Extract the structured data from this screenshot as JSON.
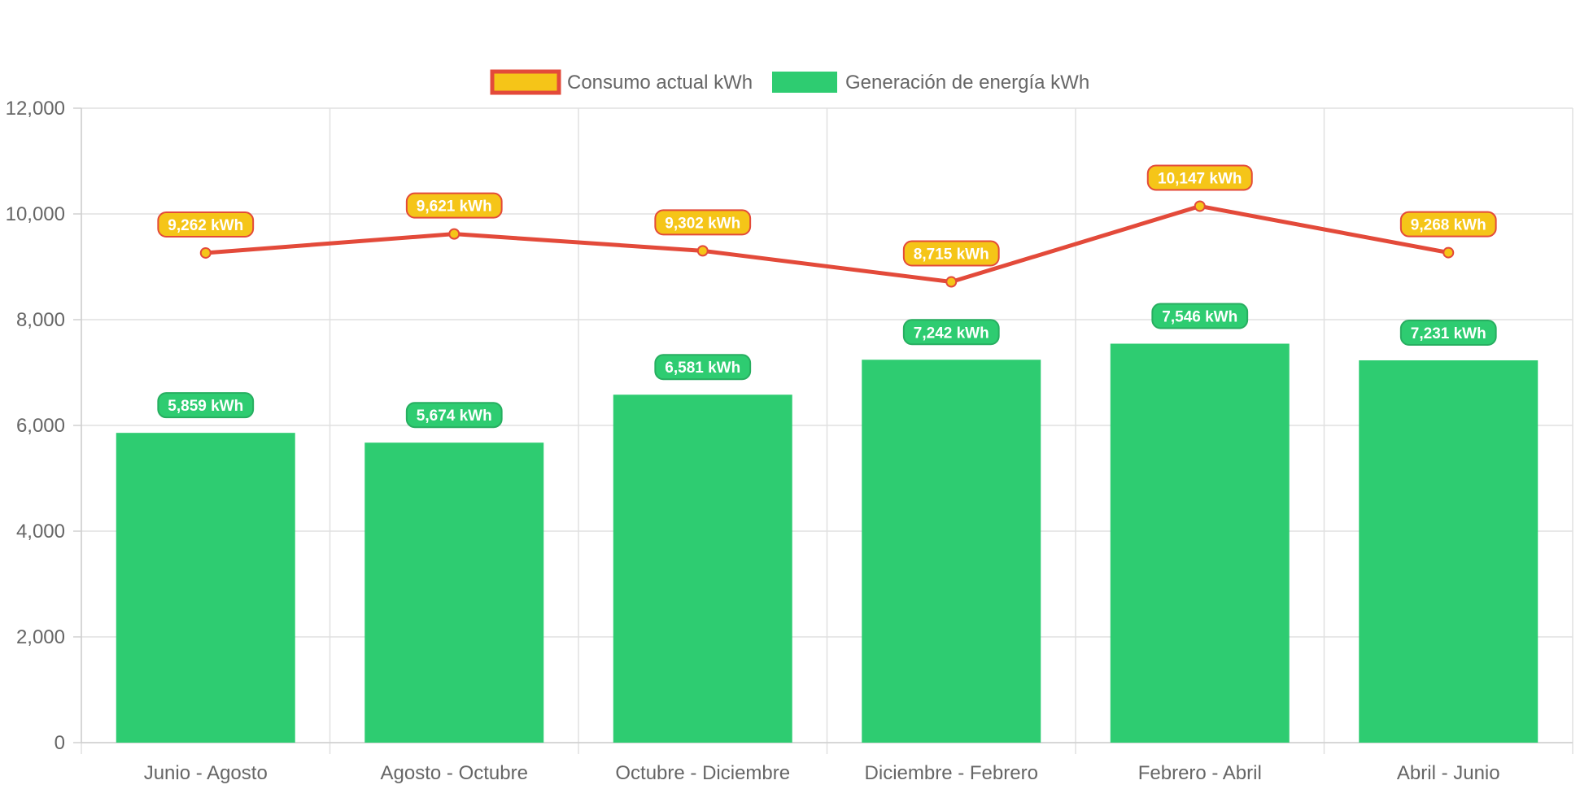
{
  "chart_data": {
    "type": "bar",
    "categories": [
      "Junio - Agosto",
      "Agosto - Octubre",
      "Octubre - Diciembre",
      "Diciembre - Febrero",
      "Febrero - Abril",
      "Abril - Junio"
    ],
    "series": [
      {
        "name": "Consumo actual kWh",
        "type": "line",
        "values": [
          9262,
          9621,
          9302,
          8715,
          10147,
          9268
        ],
        "labels": [
          "9,262 kWh",
          "9,621 kWh",
          "9,302 kWh",
          "8,715 kWh",
          "10,147 kWh",
          "9,268 kWh"
        ],
        "line_color": "#e34a3a",
        "fill_color": "#f5c518"
      },
      {
        "name": "Generación de energía kWh",
        "type": "bar",
        "values": [
          5859,
          5674,
          6581,
          7242,
          7546,
          7231
        ],
        "labels": [
          "5,859 kWh",
          "5,674 kWh",
          "6,581 kWh",
          "7,242 kWh",
          "7,546 kWh",
          "7,231 kWh"
        ],
        "color": "#2ecc71",
        "border_color": "#27ae60"
      }
    ],
    "yticks": [
      "0",
      "2,000",
      "4,000",
      "6,000",
      "8,000",
      "10,000",
      "12,000"
    ],
    "ylim": [
      0,
      12000
    ],
    "grid": true,
    "legend_position": "top-center",
    "title": "",
    "xlabel": "",
    "ylabel": ""
  }
}
